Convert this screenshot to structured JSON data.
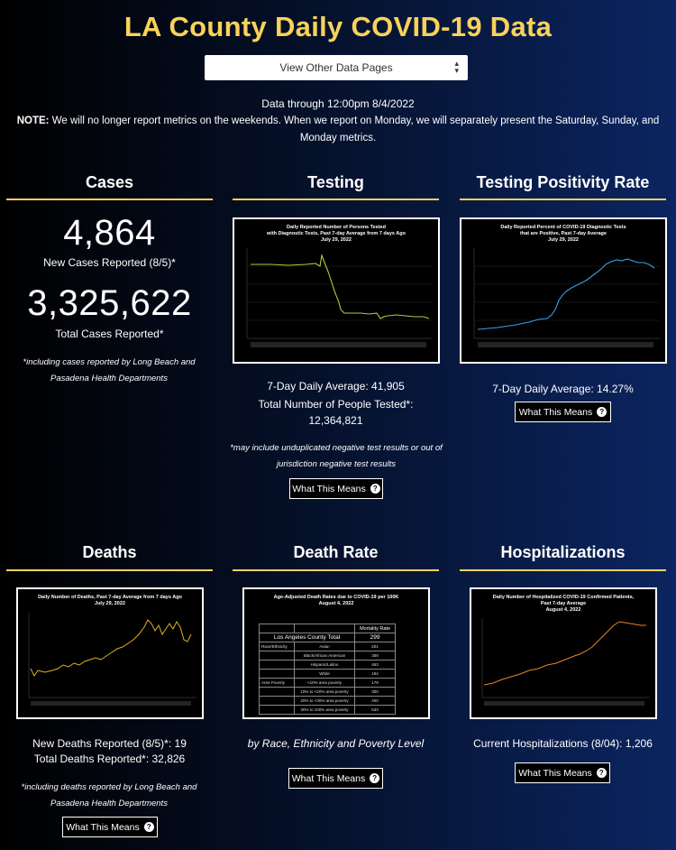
{
  "page": {
    "title": "LA County Daily COVID-19 Data",
    "select_label": "View Other Data Pages",
    "data_through": "Data through 12:00pm 8/4/2022",
    "note_label": "NOTE:",
    "note_text": " We will no longer report metrics on the weekends. When we report on Monday, we will separately present the Saturday, Sunday, and Monday metrics.",
    "button_label": "What This Means",
    "accent_color": "#f8d25a"
  },
  "cases": {
    "title": "Cases",
    "new_cases": "4,864",
    "new_cases_label": "New Cases Reported (8/5)*",
    "total_cases": "3,325,622",
    "total_cases_label": "Total Cases Reported*",
    "footnote": "*including cases reported by Long Beach and Pasadena Health Departments"
  },
  "testing": {
    "title": "Testing",
    "chart_title_1": "Daily Reported Number of Persons Tested",
    "chart_title_2": "with Diagnostic Tests, Past 7-day Average from 7 days Ago",
    "chart_title_3": "July 29, 2022",
    "daily_average": "7-Day Daily Average: 41,905",
    "total_label": "Total Number of People Tested*:",
    "total_value": "12,364,821",
    "footnote": "*may include unduplicated negative test results or out of jurisdiction negative test results"
  },
  "positivity": {
    "title": "Testing Positivity Rate",
    "chart_title_1": "Daily Reported Percent of COVID-19 Diagnostic Tests",
    "chart_title_2": "that are Positive, Past 7-day Average",
    "chart_title_3": "July 29, 2022",
    "daily_average": "7-Day Daily Average: 14.27%"
  },
  "deaths": {
    "title": "Deaths",
    "chart_title_1": "Daily Number of Deaths, Past 7-day Average from 7 days Ago",
    "chart_title_2": "July 29, 2022",
    "new_deaths": "New Deaths Reported (8/5)*: 19",
    "total_deaths": "Total Deaths Reported*: 32,826",
    "footnote": "*including deaths reported by Long Beach and Pasadena Health Departments"
  },
  "death_rate": {
    "title": "Death Rate",
    "chart_title_1": "Age-Adjusted Death Rates due to COVID-19 per 100K",
    "chart_title_2": "August 4, 2022",
    "table_header": "Mortality Rate",
    "total_label": "Los Angeles County Total",
    "total_value": "299",
    "rows": [
      {
        "group": "Race/Ethnicity",
        "name": "Asian",
        "value": "201"
      },
      {
        "group": "",
        "name": "Black/African American",
        "value": "359"
      },
      {
        "group": "",
        "name": "Hispanic/Latino",
        "value": "463"
      },
      {
        "group": "",
        "name": "White",
        "value": "184"
      },
      {
        "group": "Area Poverty",
        "name": "<10% area poverty",
        "value": "179"
      },
      {
        "group": "",
        "name": "10% to <20% area poverty",
        "value": "300"
      },
      {
        "group": "",
        "name": "20% to <30% area poverty",
        "value": "400"
      },
      {
        "group": "",
        "name": "30% to 100% area poverty",
        "value": "533"
      }
    ],
    "caption": "by Race, Ethnicity and Poverty Level"
  },
  "hospitalizations": {
    "title": "Hospitalizations",
    "chart_title_1": "Daily Number of Hospitalized COVID-19 Confirmed Patients,",
    "chart_title_2": "Past 7-day Average",
    "chart_title_3": "August 4, 2022",
    "current": "Current Hospitalizations (8/04): 1,206"
  },
  "charts": {
    "testing_color": "#b5c93a",
    "positivity_color": "#3aa0e8",
    "deaths_color": "#e0b020",
    "hospital_color": "#e8822a"
  }
}
